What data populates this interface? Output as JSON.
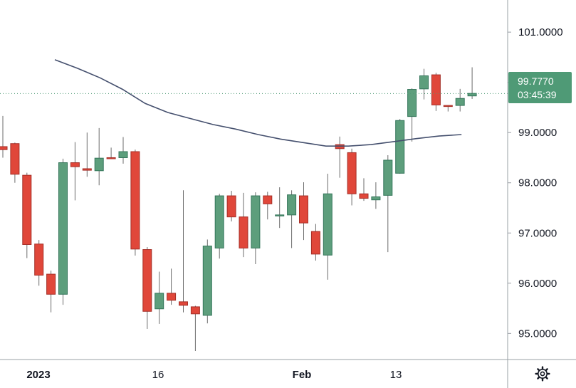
{
  "chart_data": {
    "type": "candlestick",
    "title": "",
    "xlabel": "",
    "ylabel": "",
    "ylim": [
      94.48,
      101.64
    ],
    "grid": false,
    "colors": {
      "up_body": "#5d9e7c",
      "up_border": "#34755a",
      "down_body": "#e0473a",
      "down_border": "#a52f27",
      "wick": "#6b6b6b",
      "moving_average": "#45506e",
      "last_price_bg": "#4f9a76",
      "axis_line": "#9aa0a6",
      "text": "#131722"
    },
    "y_ticks": [
      "101.0000",
      "100.0000",
      "99.0000",
      "98.0000",
      "97.0000",
      "96.0000",
      "95.0000"
    ],
    "x_ticks": [
      "2023",
      "16",
      "Feb",
      "13"
    ],
    "last_price": {
      "value": 99.777,
      "label": "99.7770",
      "countdown": "03:45:39"
    },
    "candles": [
      {
        "o": 98.72,
        "h": 99.33,
        "l": 98.5,
        "c": 98.66
      },
      {
        "o": 98.78,
        "h": 98.8,
        "l": 98.0,
        "c": 98.17
      },
      {
        "o": 98.15,
        "h": 98.2,
        "l": 96.5,
        "c": 96.77
      },
      {
        "o": 96.78,
        "h": 96.86,
        "l": 95.95,
        "c": 96.16
      },
      {
        "o": 96.18,
        "h": 96.25,
        "l": 95.42,
        "c": 95.78
      },
      {
        "o": 95.78,
        "h": 98.48,
        "l": 95.57,
        "c": 98.4
      },
      {
        "o": 98.4,
        "h": 98.81,
        "l": 97.65,
        "c": 98.32
      },
      {
        "o": 98.28,
        "h": 99.0,
        "l": 98.12,
        "c": 98.25
      },
      {
        "o": 98.24,
        "h": 99.09,
        "l": 97.95,
        "c": 98.49
      },
      {
        "o": 98.5,
        "h": 98.7,
        "l": 98.49,
        "c": 98.48
      },
      {
        "o": 98.5,
        "h": 98.91,
        "l": 98.38,
        "c": 98.62
      },
      {
        "o": 98.62,
        "h": 98.66,
        "l": 96.55,
        "c": 96.68
      },
      {
        "o": 96.67,
        "h": 96.72,
        "l": 95.09,
        "c": 95.44
      },
      {
        "o": 95.49,
        "h": 96.23,
        "l": 95.19,
        "c": 95.8
      },
      {
        "o": 95.8,
        "h": 96.29,
        "l": 95.57,
        "c": 95.66
      },
      {
        "o": 95.63,
        "h": 97.85,
        "l": 95.42,
        "c": 95.56
      },
      {
        "o": 95.53,
        "h": 95.55,
        "l": 94.65,
        "c": 95.39
      },
      {
        "o": 95.36,
        "h": 96.87,
        "l": 95.2,
        "c": 96.74
      },
      {
        "o": 96.7,
        "h": 97.78,
        "l": 96.49,
        "c": 97.74
      },
      {
        "o": 97.74,
        "h": 97.84,
        "l": 97.23,
        "c": 97.32
      },
      {
        "o": 97.32,
        "h": 97.8,
        "l": 96.52,
        "c": 96.7
      },
      {
        "o": 96.7,
        "h": 97.81,
        "l": 96.38,
        "c": 97.74
      },
      {
        "o": 97.74,
        "h": 97.82,
        "l": 97.27,
        "c": 97.58
      },
      {
        "o": 97.35,
        "h": 97.91,
        "l": 97.1,
        "c": 97.36
      },
      {
        "o": 97.36,
        "h": 97.85,
        "l": 96.7,
        "c": 97.76
      },
      {
        "o": 97.74,
        "h": 98.01,
        "l": 96.86,
        "c": 97.2
      },
      {
        "o": 97.03,
        "h": 97.18,
        "l": 96.45,
        "c": 96.58
      },
      {
        "o": 96.56,
        "h": 98.18,
        "l": 96.07,
        "c": 97.78
      },
      {
        "o": 98.76,
        "h": 98.92,
        "l": 98.1,
        "c": 98.68
      },
      {
        "o": 98.6,
        "h": 98.68,
        "l": 97.55,
        "c": 97.78
      },
      {
        "o": 97.78,
        "h": 98.09,
        "l": 97.64,
        "c": 97.69
      },
      {
        "o": 97.66,
        "h": 98.01,
        "l": 97.48,
        "c": 97.72
      },
      {
        "o": 97.75,
        "h": 98.55,
        "l": 96.62,
        "c": 98.45
      },
      {
        "o": 98.19,
        "h": 99.27,
        "l": 98.18,
        "c": 99.24
      },
      {
        "o": 99.32,
        "h": 99.88,
        "l": 98.82,
        "c": 99.86
      },
      {
        "o": 99.87,
        "h": 100.27,
        "l": 99.66,
        "c": 100.13
      },
      {
        "o": 100.15,
        "h": 100.19,
        "l": 99.43,
        "c": 99.55
      },
      {
        "o": 99.54,
        "h": 99.54,
        "l": 99.42,
        "c": 99.53
      },
      {
        "o": 99.54,
        "h": 99.87,
        "l": 99.42,
        "c": 99.68
      },
      {
        "o": 99.73,
        "h": 100.3,
        "l": 99.67,
        "c": 99.78
      }
    ],
    "moving_average": [
      100.45,
      100.28,
      100.09,
      99.86,
      99.58,
      99.4,
      99.28,
      99.16,
      99.07,
      98.96,
      98.87,
      98.8,
      98.73,
      98.73,
      98.76,
      98.82,
      98.88,
      98.93,
      98.96
    ]
  }
}
